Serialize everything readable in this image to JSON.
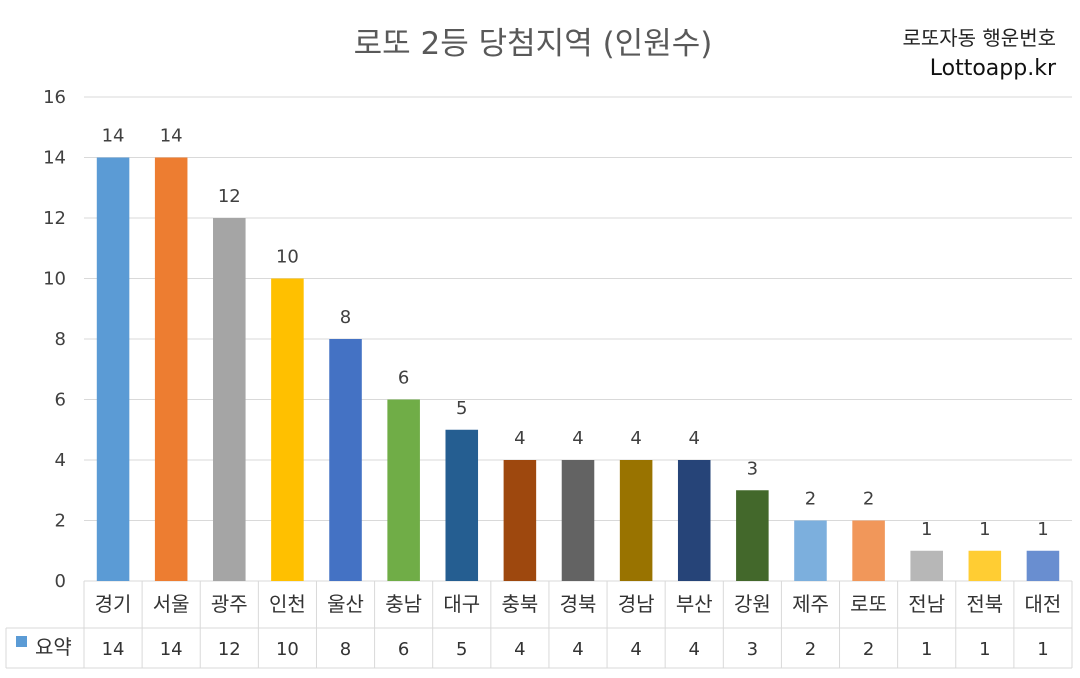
{
  "header": {
    "title": "로또 2등 당첨지역 (인원수)",
    "brand_line1": "로또자동 행운번호",
    "brand_line2": "Lottoapp.kr"
  },
  "chart_data": {
    "type": "bar",
    "title": "로또 2등 당첨지역 (인원수)",
    "xlabel": "",
    "ylabel": "",
    "ylim": [
      0,
      16
    ],
    "yticks": [
      0,
      2,
      4,
      6,
      8,
      10,
      12,
      14,
      16
    ],
    "grid": true,
    "categories": [
      "경기",
      "서울",
      "광주",
      "인천",
      "울산",
      "충남",
      "대구",
      "충북",
      "경북",
      "경남",
      "부산",
      "강원",
      "제주",
      "로또",
      "전남",
      "전북",
      "대전"
    ],
    "series": [
      {
        "name": "요약",
        "values": [
          14,
          14,
          12,
          10,
          8,
          6,
          5,
          4,
          4,
          4,
          4,
          3,
          2,
          2,
          1,
          1,
          1
        ]
      }
    ],
    "bar_colors": [
      "#5B9BD5",
      "#ED7D31",
      "#A5A5A5",
      "#FFC000",
      "#4472C4",
      "#70AD47",
      "#255E91",
      "#9E480E",
      "#636363",
      "#997300",
      "#264478",
      "#43682B",
      "#7CAFDD",
      "#F1975A",
      "#B7B7B7",
      "#FFCD33",
      "#698ED0"
    ],
    "legend_color": "#5B9BD5",
    "data_table": true
  }
}
